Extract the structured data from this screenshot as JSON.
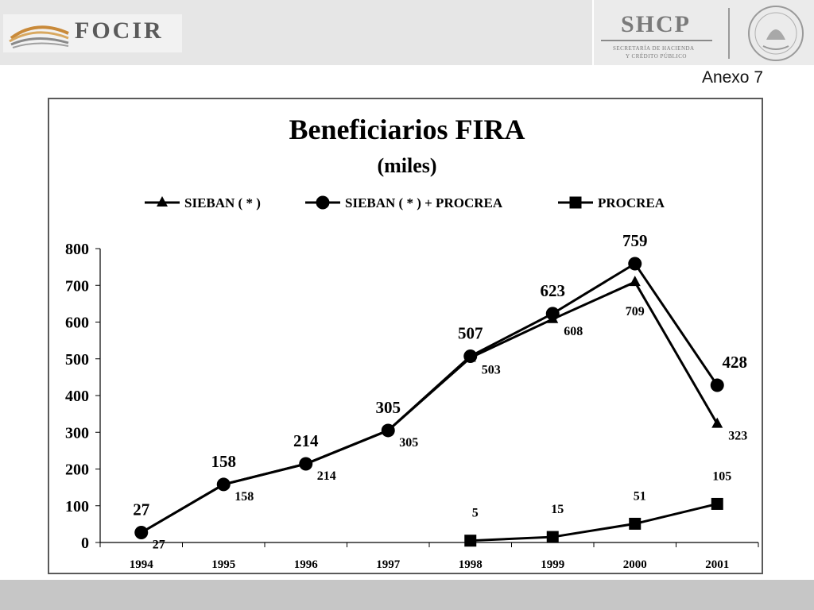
{
  "header": {
    "brand_left": "FOCIR",
    "brand_right": "SHCP",
    "brand_right_sub1": "SECRETARÍA DE HACIENDA",
    "brand_right_sub2": "Y CRÉDITO PÚBLICO"
  },
  "annex_label": "Anexo 7",
  "chart_data": {
    "type": "line",
    "title": "Beneficiarios FIRA",
    "subtitle": "(miles)",
    "xlabel": "",
    "ylabel": "",
    "categories": [
      "1994",
      "1995",
      "1996",
      "1997",
      "1998",
      "1999",
      "2000",
      "2001"
    ],
    "ylim": [
      0,
      800
    ],
    "yticks": [
      "0",
      "100",
      "200",
      "300",
      "400",
      "500",
      "600",
      "700",
      "800"
    ],
    "grid": false,
    "legend": "top",
    "series": [
      {
        "name": "SIEBAN ( * )",
        "marker": "triangle",
        "color": "#000000",
        "values": [
          27,
          158,
          214,
          305,
          503,
          608,
          709,
          323
        ]
      },
      {
        "name": "SIEBAN ( * ) + PROCREA",
        "marker": "circle",
        "color": "#000000",
        "values": [
          27,
          158,
          214,
          305,
          507,
          623,
          759,
          428
        ]
      },
      {
        "name": "PROCREA",
        "marker": "square",
        "color": "#000000",
        "values": [
          null,
          null,
          null,
          null,
          5,
          15,
          51,
          105
        ]
      }
    ]
  }
}
